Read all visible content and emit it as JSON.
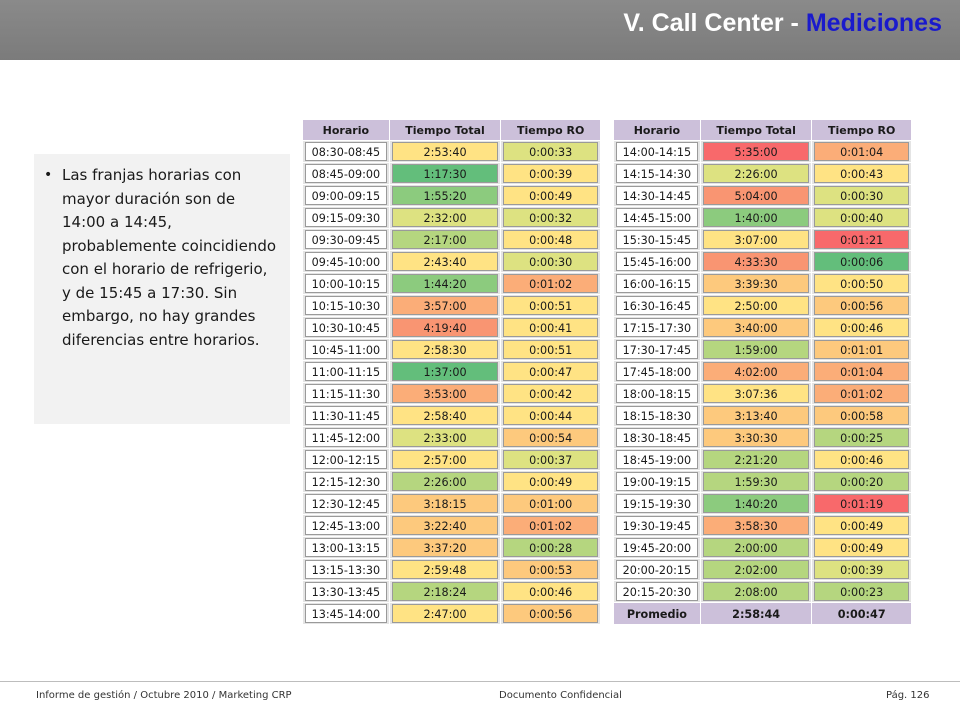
{
  "header": {
    "title_prefix": "V. Call Center - ",
    "title_highlight": "Mediciones"
  },
  "note": {
    "text": "Las franjas horarias con mayor duración son de 14:00 a 14:45, probablemente coincidiendo con el horario de refrigerio, y de 15:45 a 17:30. Sin embargo, no hay grandes diferencias entre horarios."
  },
  "colors": {
    "header_bg": "#808080",
    "title_accent": "#1a1acc",
    "table_header_bg": "#ccc0da",
    "scale_best": "#63be7b",
    "scale_mid": "#ffe384",
    "scale_worst": "#f8696b"
  },
  "table_left": {
    "columns": [
      "Horario",
      "Tiempo Total",
      "Tiempo RO"
    ],
    "rows": [
      {
        "horario": "08:30-08:45",
        "total": "2:53:40",
        "ro": "0:00:33",
        "total_level": 5,
        "ro_level": 4
      },
      {
        "horario": "08:45-09:00",
        "total": "1:17:30",
        "ro": "0:00:39",
        "total_level": 1,
        "ro_level": 5
      },
      {
        "horario": "09:00-09:15",
        "total": "1:55:20",
        "ro": "0:00:49",
        "total_level": 2,
        "ro_level": 5
      },
      {
        "horario": "09:15-09:30",
        "total": "2:32:00",
        "ro": "0:00:32",
        "total_level": 4,
        "ro_level": 4
      },
      {
        "horario": "09:30-09:45",
        "total": "2:17:00",
        "ro": "0:00:48",
        "total_level": 3,
        "ro_level": 5
      },
      {
        "horario": "09:45-10:00",
        "total": "2:43:40",
        "ro": "0:00:30",
        "total_level": 5,
        "ro_level": 4
      },
      {
        "horario": "10:00-10:15",
        "total": "1:44:20",
        "ro": "0:01:02",
        "total_level": 2,
        "ro_level": 7
      },
      {
        "horario": "10:15-10:30",
        "total": "3:57:00",
        "ro": "0:00:51",
        "total_level": 7,
        "ro_level": 5
      },
      {
        "horario": "10:30-10:45",
        "total": "4:19:40",
        "ro": "0:00:41",
        "total_level": 8,
        "ro_level": 5
      },
      {
        "horario": "10:45-11:00",
        "total": "2:58:30",
        "ro": "0:00:51",
        "total_level": 5,
        "ro_level": 5
      },
      {
        "horario": "11:00-11:15",
        "total": "1:37:00",
        "ro": "0:00:47",
        "total_level": 1,
        "ro_level": 5
      },
      {
        "horario": "11:15-11:30",
        "total": "3:53:00",
        "ro": "0:00:42",
        "total_level": 7,
        "ro_level": 5
      },
      {
        "horario": "11:30-11:45",
        "total": "2:58:40",
        "ro": "0:00:44",
        "total_level": 5,
        "ro_level": 5
      },
      {
        "horario": "11:45-12:00",
        "total": "2:33:00",
        "ro": "0:00:54",
        "total_level": 4,
        "ro_level": 6
      },
      {
        "horario": "12:00-12:15",
        "total": "2:57:00",
        "ro": "0:00:37",
        "total_level": 5,
        "ro_level": 4
      },
      {
        "horario": "12:15-12:30",
        "total": "2:26:00",
        "ro": "0:00:49",
        "total_level": 3,
        "ro_level": 5
      },
      {
        "horario": "12:30-12:45",
        "total": "3:18:15",
        "ro": "0:01:00",
        "total_level": 6,
        "ro_level": 6
      },
      {
        "horario": "12:45-13:00",
        "total": "3:22:40",
        "ro": "0:01:02",
        "total_level": 6,
        "ro_level": 7
      },
      {
        "horario": "13:00-13:15",
        "total": "3:37:20",
        "ro": "0:00:28",
        "total_level": 6,
        "ro_level": 3
      },
      {
        "horario": "13:15-13:30",
        "total": "2:59:48",
        "ro": "0:00:53",
        "total_level": 5,
        "ro_level": 6
      },
      {
        "horario": "13:30-13:45",
        "total": "2:18:24",
        "ro": "0:00:46",
        "total_level": 3,
        "ro_level": 5
      },
      {
        "horario": "13:45-14:00",
        "total": "2:47:00",
        "ro": "0:00:56",
        "total_level": 5,
        "ro_level": 6
      }
    ]
  },
  "table_right": {
    "columns": [
      "Horario",
      "Tiempo Total",
      "Tiempo RO"
    ],
    "rows": [
      {
        "horario": "14:00-14:15",
        "total": "5:35:00",
        "ro": "0:01:04",
        "total_level": 9,
        "ro_level": 7
      },
      {
        "horario": "14:15-14:30",
        "total": "2:26:00",
        "ro": "0:00:43",
        "total_level": 4,
        "ro_level": 5
      },
      {
        "horario": "14:30-14:45",
        "total": "5:04:00",
        "ro": "0:00:30",
        "total_level": 8,
        "ro_level": 4
      },
      {
        "horario": "14:45-15:00",
        "total": "1:40:00",
        "ro": "0:00:40",
        "total_level": 2,
        "ro_level": 4
      },
      {
        "horario": "15:30-15:45",
        "total": "3:07:00",
        "ro": "0:01:21",
        "total_level": 5,
        "ro_level": 9
      },
      {
        "horario": "15:45-16:00",
        "total": "4:33:30",
        "ro": "0:00:06",
        "total_level": 8,
        "ro_level": 1
      },
      {
        "horario": "16:00-16:15",
        "total": "3:39:30",
        "ro": "0:00:50",
        "total_level": 6,
        "ro_level": 5
      },
      {
        "horario": "16:30-16:45",
        "total": "2:50:00",
        "ro": "0:00:56",
        "total_level": 5,
        "ro_level": 6
      },
      {
        "horario": "17:15-17:30",
        "total": "3:40:00",
        "ro": "0:00:46",
        "total_level": 6,
        "ro_level": 5
      },
      {
        "horario": "17:30-17:45",
        "total": "1:59:00",
        "ro": "0:01:01",
        "total_level": 3,
        "ro_level": 6
      },
      {
        "horario": "17:45-18:00",
        "total": "4:02:00",
        "ro": "0:01:04",
        "total_level": 7,
        "ro_level": 7
      },
      {
        "horario": "18:00-18:15",
        "total": "3:07:36",
        "ro": "0:01:02",
        "total_level": 5,
        "ro_level": 7
      },
      {
        "horario": "18:15-18:30",
        "total": "3:13:40",
        "ro": "0:00:58",
        "total_level": 6,
        "ro_level": 6
      },
      {
        "horario": "18:30-18:45",
        "total": "3:30:30",
        "ro": "0:00:25",
        "total_level": 6,
        "ro_level": 3
      },
      {
        "horario": "18:45-19:00",
        "total": "2:21:20",
        "ro": "0:00:46",
        "total_level": 3,
        "ro_level": 5
      },
      {
        "horario": "19:00-19:15",
        "total": "1:59:30",
        "ro": "0:00:20",
        "total_level": 3,
        "ro_level": 3
      },
      {
        "horario": "19:15-19:30",
        "total": "1:40:20",
        "ro": "0:01:19",
        "total_level": 2,
        "ro_level": 9
      },
      {
        "horario": "19:30-19:45",
        "total": "3:58:30",
        "ro": "0:00:49",
        "total_level": 7,
        "ro_level": 5
      },
      {
        "horario": "19:45-20:00",
        "total": "2:00:00",
        "ro": "0:00:49",
        "total_level": 3,
        "ro_level": 5
      },
      {
        "horario": "20:00-20:15",
        "total": "2:02:00",
        "ro": "0:00:39",
        "total_level": 3,
        "ro_level": 4
      },
      {
        "horario": "20:15-20:30",
        "total": "2:08:00",
        "ro": "0:00:23",
        "total_level": 3,
        "ro_level": 3
      }
    ],
    "summary": {
      "horario": "Promedio",
      "total": "2:58:44",
      "ro": "0:00:47"
    }
  },
  "footer": {
    "left": "Informe de gestión / Octubre 2010 / Marketing CRP",
    "center": "Documento Confidencial",
    "right": "Pág. 126"
  }
}
